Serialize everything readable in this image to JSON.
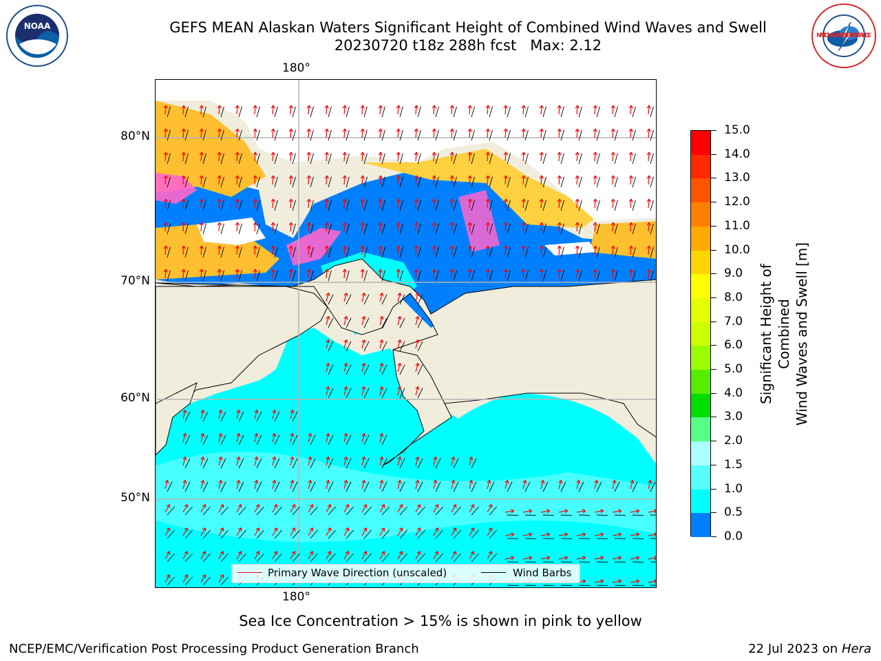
{
  "title": {
    "line1": "GEFS MEAN Alaskan Waters Significant Height of Combined Wind Waves and Swell",
    "line2": "20230720 t18z 288h fcst   Max: 2.12"
  },
  "logos": {
    "left": {
      "text": "NOAA",
      "icon": "noaa-logo-icon",
      "ring_color": "#0a5fa8"
    },
    "right": {
      "text": "NATIONAL WEATHER SERVICE",
      "icon": "nws-logo-icon",
      "ring_color": "#d7262a"
    }
  },
  "map": {
    "lon_labels": {
      "top": "180°",
      "bottom": "180°"
    },
    "lat_labels": [
      "80°N",
      "70°N",
      "60°N",
      "50°N"
    ],
    "colors": {
      "land": "#f0eddc",
      "ocean": "#00ffff",
      "grid": "#b3b3b3",
      "wave_arrow": "#ff0000",
      "wind_barb": "#000000"
    },
    "legend": {
      "wave_label": "Primary Wave Direction (unscaled)",
      "wind_label": "Wind Barbs"
    }
  },
  "colorbar": {
    "title_line1": "Significant Height of Combined",
    "title_line2": "Wind Waves and Swell [m]",
    "ticks": [
      "15.0",
      "14.0",
      "13.0",
      "12.0",
      "11.0",
      "10.0",
      "9.0",
      "8.0",
      "7.0",
      "6.0",
      "5.0",
      "4.0",
      "3.0",
      "2.0",
      "1.5",
      "1.0",
      "0.5",
      "0.0"
    ],
    "colors": [
      "#ff0000",
      "#ff2a00",
      "#ff5500",
      "#ff8000",
      "#ffaa00",
      "#ffd500",
      "#ffff00",
      "#e6ff00",
      "#ccff00",
      "#99ff00",
      "#55ee00",
      "#00dd00",
      "#55ff88",
      "#aaffff",
      "#55ffff",
      "#00ffff",
      "#0080ff",
      "#0000ff"
    ]
  },
  "caption": "Sea Ice Concentration > 15% is shown in pink to yellow",
  "footer": {
    "left": "NCEP/EMC/Verification Post Processing Product Generation Branch",
    "right_prefix": "22 Jul 2023 on ",
    "right_host": "Hera"
  }
}
